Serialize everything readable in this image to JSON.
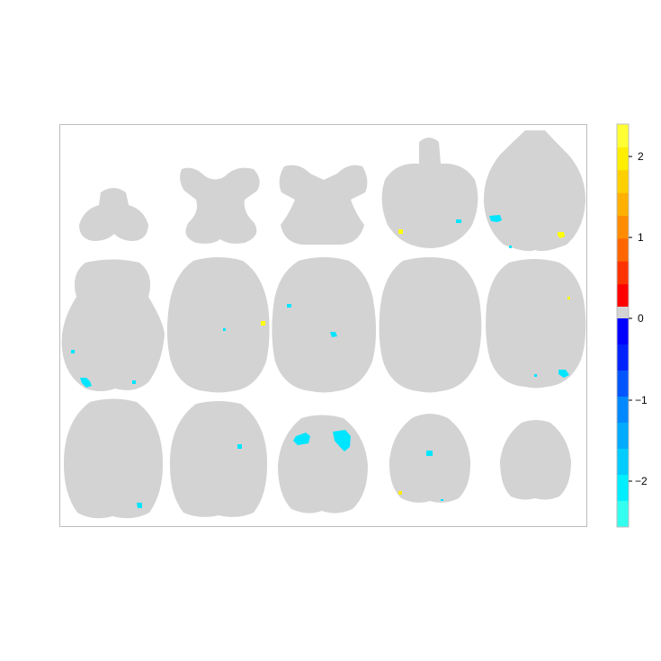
{
  "figure": {
    "type": "brain-slice-montage",
    "rows": 3,
    "columns": 5,
    "slice_count": 15
  },
  "colors": {
    "frame": "#bdbdbd",
    "brain_tissue": "#d3d3d3",
    "background": "#ffffff",
    "colorbar_zero": "#d3d3d3"
  },
  "colorbar": {
    "ticks": [
      {
        "value": 2,
        "label": "2"
      },
      {
        "value": 1,
        "label": "1"
      },
      {
        "value": 0,
        "label": "0"
      },
      {
        "value": -1,
        "label": "−1"
      },
      {
        "value": -2,
        "label": "−2"
      }
    ],
    "range": [
      -2.5,
      2.4
    ],
    "positive_colors": [
      "#ff0000",
      "#ff3300",
      "#ff6600",
      "#ff8c00",
      "#ffb000",
      "#ffd000",
      "#ffee00",
      "#ffff33"
    ],
    "negative_colors": [
      "#0000ff",
      "#0022ff",
      "#0055ff",
      "#0088ff",
      "#00aaff",
      "#00ccff",
      "#00eeff",
      "#33ffee"
    ]
  }
}
